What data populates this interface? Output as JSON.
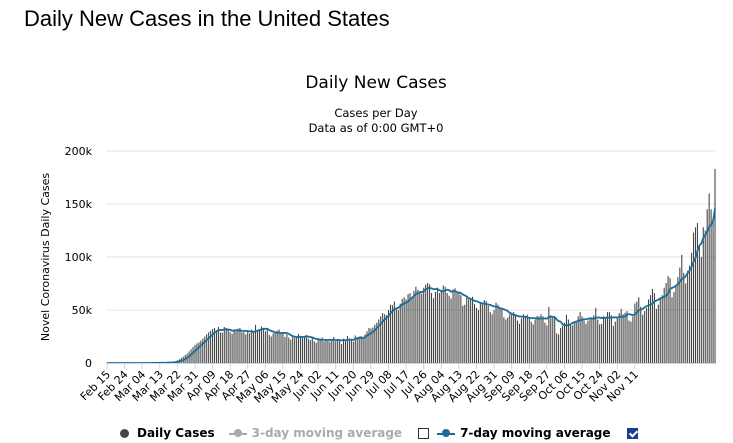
{
  "page_title": "Daily New Cases in the United States",
  "chart_data": {
    "type": "bar",
    "title": "Daily New Cases",
    "subtitle": "Cases per Day",
    "subtitle2": "Data as of 0:00 GMT+0",
    "ylabel": "Novel Coronavirus Daily Cases",
    "xlabel": "",
    "ylim": [
      0,
      200000
    ],
    "yticks": [
      0,
      50000,
      100000,
      150000,
      200000
    ],
    "ytick_labels": [
      "0",
      "50k",
      "100k",
      "150k",
      "200k"
    ],
    "xtick_labels": [
      "Feb 15",
      "Feb 24",
      "Mar 04",
      "Mar 13",
      "Mar 22",
      "Mar 31",
      "Apr 09",
      "Apr 18",
      "Apr 27",
      "May 06",
      "May 15",
      "May 24",
      "Jun 02",
      "Jun 11",
      "Jun 20",
      "Jun 29",
      "Jul 08",
      "Jul 17",
      "Jul 26",
      "Aug 04",
      "Aug 13",
      "Aug 22",
      "Aug 31",
      "Sep 09",
      "Sep 18",
      "Sep 27",
      "Oct 06",
      "Oct 15",
      "Oct 24",
      "Nov 02",
      "Nov 11"
    ],
    "start_date": "Feb 15",
    "grid": true,
    "legend_position": "bottom",
    "series": [
      {
        "name": "Daily Cases",
        "type": "bar",
        "color": "#444444",
        "values": [
          0,
          0,
          0,
          0,
          0,
          0,
          0,
          0,
          0,
          0,
          0,
          0,
          0,
          0,
          3,
          5,
          6,
          10,
          9,
          20,
          30,
          40,
          60,
          90,
          120,
          150,
          200,
          250,
          300,
          350,
          450,
          550,
          700,
          900,
          1200,
          1500,
          2500,
          3500,
          4800,
          6000,
          7500,
          9000,
          11000,
          13000,
          15000,
          17000,
          18500,
          19500,
          21000,
          23000,
          25000,
          27000,
          29000,
          30500,
          32000,
          33000,
          31000,
          34000,
          29000,
          28500,
          34000,
          33000,
          32000,
          29000,
          27500,
          31000,
          30000,
          32500,
          33000,
          29000,
          29000,
          27000,
          30500,
          28000,
          31500,
          29500,
          36000,
          30000,
          32000,
          34500,
          33000,
          30000,
          31000,
          26500,
          25000,
          28000,
          28500,
          30500,
          31500,
          27500,
          28000,
          24500,
          27000,
          24000,
          22000,
          25000,
          23500,
          24500,
          27500,
          25500,
          23500,
          24000,
          26500,
          23000,
          21500,
          24500,
          20500,
          19000,
          23000,
          22000,
          24000,
          20500,
          22500,
          21000,
          20000,
          22500,
          24500,
          20500,
          21500,
          22000,
          18000,
          23000,
          21500,
          25500,
          23000,
          21500,
          20000,
          26000,
          24500,
          25000,
          25500,
          23000,
          27000,
          30000,
          33000,
          32500,
          33500,
          36000,
          38000,
          41000,
          44000,
          47000,
          46000,
          45000,
          50000,
          55000,
          54500,
          58000,
          52000,
          50000,
          56000,
          60500,
          62000,
          60000,
          65000,
          66000,
          61000,
          68000,
          72000,
          69000,
          67000,
          65500,
          71000,
          74000,
          75500,
          74000,
          66000,
          61000,
          67000,
          71000,
          66000,
          69000,
          73000,
          72000,
          66000,
          63500,
          61000,
          69500,
          70500,
          66000,
          67500,
          64000,
          54000,
          55000,
          62000,
          60000,
          61000,
          62500,
          55500,
          52000,
          50000,
          56000,
          57000,
          59500,
          58500,
          54000,
          48000,
          46000,
          50000,
          57000,
          55000,
          52000,
          51500,
          43000,
          41000,
          43000,
          46000,
          47500,
          48000,
          46000,
          40000,
          37000,
          42000,
          46000,
          44500,
          45500,
          43000,
          39000,
          36500,
          41000,
          44500,
          44000,
          46000,
          44000,
          38000,
          35500,
          53000,
          45000,
          44000,
          44000,
          28000,
          27000,
          33000,
          35000,
          38000,
          45500,
          41000,
          36000,
          35500,
          38000,
          39000,
          44000,
          48000,
          44000,
          40000,
          37000,
          40000,
          42500,
          43000,
          45000,
          52000,
          41000,
          36500,
          37000,
          44000,
          43000,
          48000,
          48000,
          45000,
          35000,
          39000,
          42000,
          47000,
          51000,
          46000,
          47500,
          49000,
          40000,
          39000,
          44000,
          56000,
          58000,
          62000,
          53000,
          45500,
          49000,
          52000,
          60000,
          64000,
          70000,
          66000,
          51000,
          55000,
          61000,
          64000,
          71000,
          75500,
          82000,
          80000,
          62000,
          67000,
          73000,
          81000,
          90000,
          102000,
          85000,
          75000,
          87000,
          92000,
          104000,
          123000,
          128000,
          132000,
          110000,
          100000,
          128000,
          125000,
          145000,
          160000,
          145000,
          135000,
          183000
        ]
      },
      {
        "name": "3-day moving average",
        "type": "line",
        "color": "#aaaaaa",
        "visible": false
      },
      {
        "name": "7-day moving average",
        "type": "line",
        "color": "#1a6d97",
        "visible": true
      }
    ]
  },
  "legend": {
    "items": [
      "Daily Cases",
      "3-day moving average",
      "7-day moving average"
    ]
  },
  "colors": {
    "bar": "#444444",
    "ma7": "#1a6d97",
    "ma3_disabled": "#aaaaaa",
    "grid": "#e6e6e6",
    "checkbox_checked": "#1f3c8c"
  }
}
